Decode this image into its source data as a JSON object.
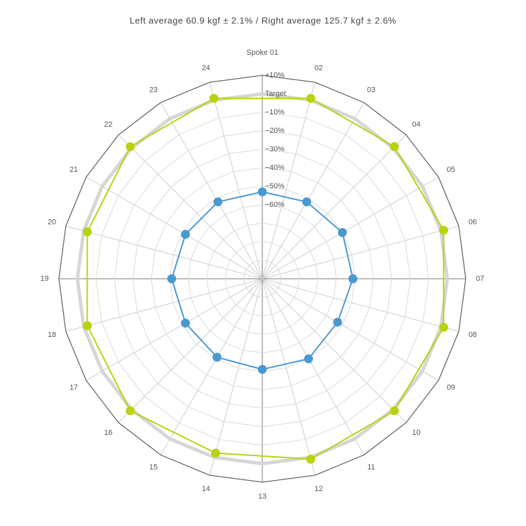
{
  "chart_data": {
    "type": "radar",
    "title": "Left average 60.9 kgf ± 2.1% / Right average 125.7 kgf ± 2.6%",
    "categories": [
      "Spoke 01",
      "02",
      "03",
      "04",
      "05",
      "06",
      "07",
      "08",
      "09",
      "10",
      "11",
      "12",
      "13",
      "14",
      "15",
      "16",
      "17",
      "18",
      "19",
      "20",
      "21",
      "22",
      "23",
      "24"
    ],
    "series": [
      {
        "color": "#4a98d0",
        "values": [
          -53,
          null,
          -52,
          null,
          -50,
          null,
          -51,
          null,
          -53,
          null,
          -50,
          null,
          -51,
          null,
          -51,
          null,
          -52,
          null,
          -51,
          null,
          -52,
          null,
          -52,
          null
        ]
      },
      {
        "color": "#b8d20c",
        "values": [
          null,
          1,
          null,
          1,
          null,
          1.5,
          null,
          1.5,
          null,
          1,
          null,
          1,
          null,
          -2.4,
          null,
          1,
          null,
          -2,
          null,
          -2,
          null,
          1,
          null,
          1
        ]
      }
    ],
    "ylim": [
      -100,
      10
    ],
    "yticks": [
      {
        "value": 10,
        "label": "+10%"
      },
      {
        "value": 0,
        "label": "Target"
      },
      {
        "value": -10,
        "label": "−10%"
      },
      {
        "value": -20,
        "label": "−20%"
      },
      {
        "value": -30,
        "label": "−30%"
      },
      {
        "value": -40,
        "label": "−40%"
      },
      {
        "value": -50,
        "label": "−50%"
      },
      {
        "value": -60,
        "label": "−60%"
      },
      {
        "value": -70,
        "label": null
      },
      {
        "value": -80,
        "label": null
      },
      {
        "value": -90,
        "label": null
      }
    ],
    "grid": true
  }
}
